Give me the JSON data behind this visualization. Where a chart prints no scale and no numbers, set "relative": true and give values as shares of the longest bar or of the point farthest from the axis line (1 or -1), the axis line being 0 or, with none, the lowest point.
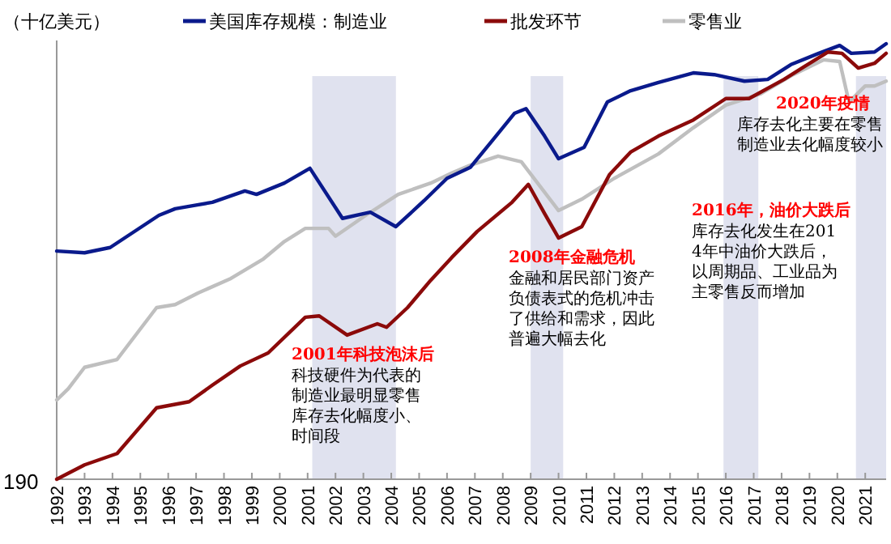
{
  "chart_data": {
    "type": "line",
    "relative": true,
    "ylabel": "（十亿美元）",
    "legend": "top",
    "xlim": [
      "1992-01",
      "2021-10"
    ],
    "xticks": [
      "1992",
      "1993",
      "1994",
      "1995",
      "1996",
      "1997",
      "1998",
      "1999",
      "2000",
      "2001",
      "2002",
      "2003",
      "2004",
      "2005",
      "2006",
      "2007",
      "2008",
      "2009",
      "2010",
      "2011",
      "2012",
      "2013",
      "2014",
      "2015",
      "2016",
      "2017",
      "2018",
      "2019",
      "2020",
      "2021"
    ],
    "bands": [
      {
        "axis": "x",
        "from": "2001-03",
        "to": "2004-03",
        "color": "#e0e2ef"
      },
      {
        "axis": "x",
        "from": "2009-01",
        "to": "2010-03",
        "color": "#e0e2ef"
      },
      {
        "axis": "x",
        "from": "2015-12",
        "to": "2017-03",
        "color": "#e0e2ef"
      },
      {
        "axis": "x",
        "from": "2020-09",
        "to": "2021-10",
        "color": "#e0e2ef"
      }
    ],
    "series": [
      {
        "name": "美国库存规模：制造业",
        "color": "#0a1a8c",
        "x": [
          "1992-01",
          "1993-01",
          "1993-12",
          "1995-09",
          "1996-04",
          "1997-08",
          "1998-10",
          "1999-03",
          "2000-03",
          "2001-02",
          "2002-04",
          "2003-04",
          "2004-03",
          "2005-03",
          "2006-01",
          "2006-11",
          "2007-09",
          "2008-06",
          "2008-11",
          "2009-07",
          "2010-01",
          "2010-12",
          "2011-10",
          "2012-08",
          "2013-08",
          "2014-11",
          "2015-08",
          "2016-09",
          "2017-07",
          "2018-05",
          "2019-05",
          "2020-02",
          "2020-07",
          "2021-05",
          "2021-10"
        ],
        "values": [
          0.524,
          0.52,
          0.532,
          0.606,
          0.621,
          0.636,
          0.662,
          0.654,
          0.68,
          0.714,
          0.599,
          0.613,
          0.58,
          0.639,
          0.691,
          0.716,
          0.781,
          0.84,
          0.851,
          0.788,
          0.736,
          0.762,
          0.866,
          0.892,
          0.911,
          0.933,
          0.929,
          0.914,
          0.918,
          0.952,
          0.978,
          0.996,
          0.978,
          0.981,
          1.0
        ]
      },
      {
        "name": "批发环节",
        "color": "#8b0a0a",
        "x": [
          "1992-01",
          "1993-01",
          "1994-03",
          "1995-08",
          "1996-10",
          "1997-08",
          "1998-08",
          "1999-08",
          "2000-12",
          "2001-06",
          "2002-06",
          "2003-07",
          "2003-11",
          "2004-08",
          "2005-06",
          "2006-03",
          "2007-02",
          "2008-05",
          "2008-12",
          "2009-07",
          "2010-01",
          "2010-11",
          "2011-11",
          "2012-08",
          "2013-08",
          "2014-11",
          "2016-01",
          "2016-11",
          "2018-02",
          "2018-11",
          "2019-09",
          "2020-03",
          "2020-10",
          "2021-05",
          "2021-10"
        ],
        "values": [
          0,
          0.033,
          0.059,
          0.164,
          0.178,
          0.216,
          0.26,
          0.29,
          0.372,
          0.375,
          0.331,
          0.357,
          0.349,
          0.394,
          0.457,
          0.509,
          0.569,
          0.636,
          0.677,
          0.61,
          0.554,
          0.58,
          0.7,
          0.751,
          0.788,
          0.825,
          0.874,
          0.874,
          0.918,
          0.948,
          0.981,
          0.978,
          0.944,
          0.955,
          0.978
        ]
      },
      {
        "name": "零售业",
        "color": "#bfbfbf",
        "x": [
          "1992-01",
          "1992-06",
          "1993-01",
          "1994-03",
          "1995-08",
          "1996-04",
          "1997-02",
          "1998-04",
          "1999-06",
          "2000-03",
          "2000-12",
          "2001-10",
          "2002-01",
          "2003-02",
          "2004-04",
          "2005-06",
          "2006-03",
          "2006-11",
          "2007-11",
          "2008-09",
          "2010-01",
          "2010-11",
          "2012-01",
          "2013-08",
          "2014-11",
          "2016-01",
          "2017-04",
          "2018-06",
          "2019-07",
          "2020-02",
          "2020-06",
          "2021-01",
          "2021-05",
          "2021-10"
        ],
        "values": [
          0.182,
          0.208,
          0.257,
          0.275,
          0.394,
          0.401,
          0.428,
          0.461,
          0.506,
          0.546,
          0.576,
          0.576,
          0.558,
          0.606,
          0.654,
          0.68,
          0.703,
          0.721,
          0.742,
          0.729,
          0.617,
          0.643,
          0.691,
          0.747,
          0.807,
          0.859,
          0.885,
          0.929,
          0.963,
          0.959,
          0.866,
          0.903,
          0.903,
          0.914
        ]
      }
    ],
    "annotations": [
      "190",
      "2001年科技泡沫后",
      "科技硬件为代表的制造业最明显零售库存去化幅度小、时间段",
      "2008年金融危机",
      "金融和居民部门资产负债表式的危机冲击了供给和需求，因此普遍大幅去化",
      "2016年，油价大跌后",
      "库存去化发生在2014年中油价大跌后，以周期品、工业品为主零售反而增加",
      "2020年疫情",
      "库存去化主要在零售制造业去化幅度较小"
    ]
  }
}
